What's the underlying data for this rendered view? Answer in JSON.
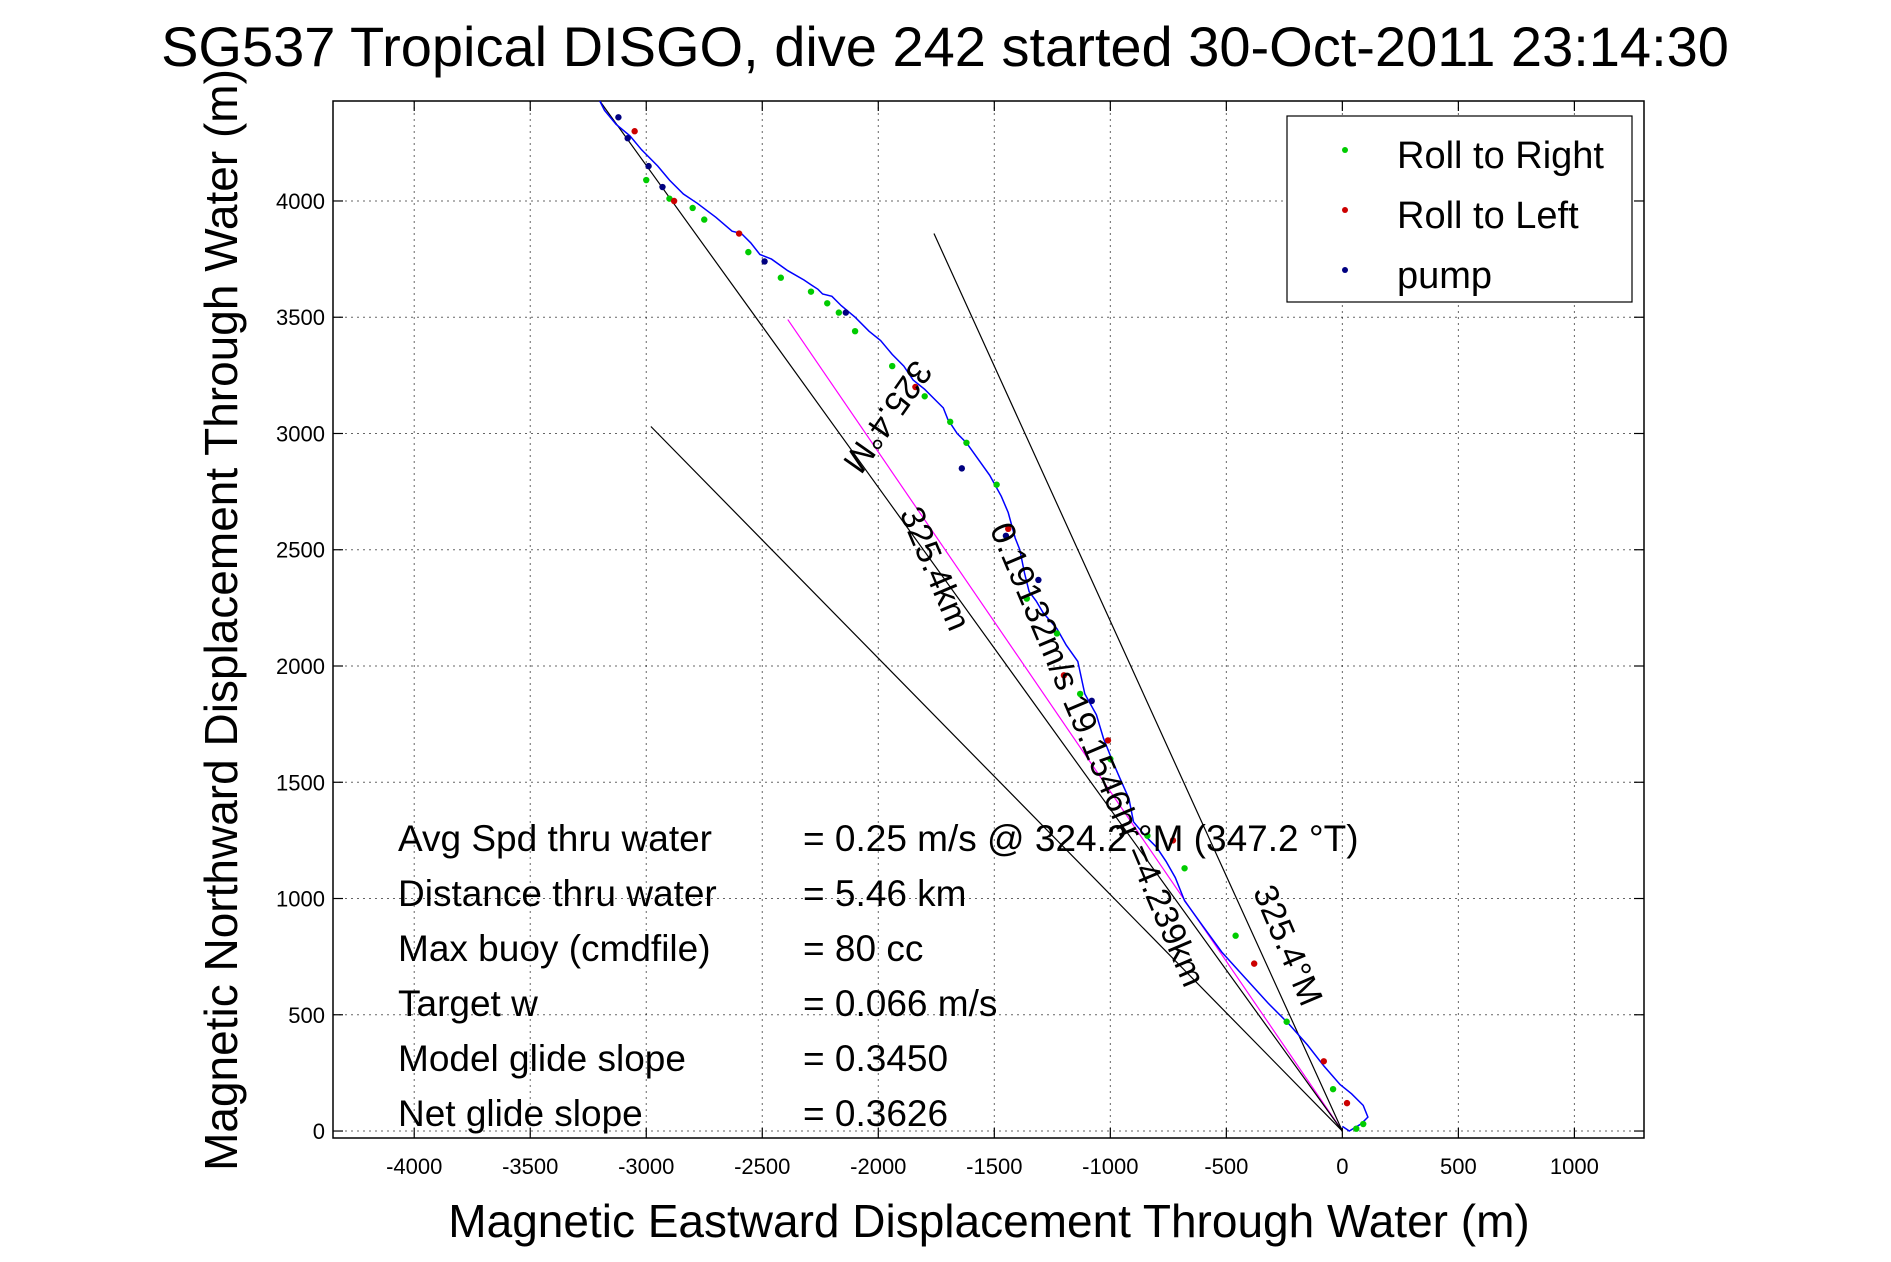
{
  "title": "SG537 Tropical DISGO, dive 242 started 30-Oct-2011 23:14:30",
  "chart_data": {
    "type": "line",
    "title": "SG537 Tropical DISGO, dive 242 started 30-Oct-2011 23:14:30",
    "xlabel": "Magnetic Eastward Displacement Through Water (m)",
    "ylabel": "Magnetic Northward Displacement Through Water (m)",
    "xlim": [
      -4350,
      1300
    ],
    "ylim": [
      -30,
      4430
    ],
    "xticks": [
      -4000,
      -3500,
      -3000,
      -2500,
      -2000,
      -1500,
      -1000,
      -500,
      0,
      500,
      1000
    ],
    "yticks": [
      0,
      500,
      1000,
      1500,
      2000,
      2500,
      3000,
      3500,
      4000
    ],
    "xticklabels": [
      "-4000",
      "-3500",
      "-3000",
      "-2500",
      "-2000",
      "-1500",
      "-1000",
      "-500",
      "0",
      "500",
      "1000"
    ],
    "yticklabels": [
      "0",
      "500",
      "1000",
      "1500",
      "2000",
      "2500",
      "3000",
      "3500",
      "4000"
    ],
    "grid": true,
    "legend": {
      "position": "top-right",
      "entries": [
        {
          "label": "Roll to Right",
          "color": "#00cc00"
        },
        {
          "label": "Roll to Left",
          "color": "#cc0000"
        },
        {
          "label": "pump",
          "color": "#000080"
        }
      ]
    },
    "track": {
      "color": "#0000ff",
      "x": [
        0,
        30,
        80,
        110,
        90,
        40,
        -10,
        -80,
        -150,
        -230,
        -320,
        -420,
        -520,
        -600,
        -680,
        -720,
        -760,
        -800,
        -850,
        -900,
        -920,
        -960,
        -990,
        -1030,
        -1060,
        -1110,
        -1140,
        -1190,
        -1230,
        -1290,
        -1320,
        -1350,
        -1370,
        -1390,
        -1410,
        -1440,
        -1470,
        -1520,
        -1570,
        -1620,
        -1660,
        -1700,
        -1720,
        -1760,
        -1800,
        -1850,
        -1890,
        -1940,
        -1990,
        -2040,
        -2100,
        -2160,
        -2200,
        -2240,
        -2260,
        -2290,
        -2320,
        -2390,
        -2460,
        -2510,
        -2550,
        -2590,
        -2630,
        -2700,
        -2780,
        -2840,
        -2900,
        -2950,
        -3020,
        -3070,
        -3130,
        -3180,
        -3200
      ],
      "y": [
        20,
        0,
        30,
        60,
        110,
        160,
        200,
        280,
        370,
        460,
        550,
        660,
        770,
        880,
        990,
        1090,
        1160,
        1220,
        1270,
        1330,
        1430,
        1520,
        1590,
        1690,
        1790,
        1880,
        2020,
        2090,
        2160,
        2230,
        2280,
        2320,
        2400,
        2500,
        2550,
        2660,
        2730,
        2820,
        2890,
        2960,
        3000,
        3060,
        3110,
        3150,
        3190,
        3230,
        3290,
        3340,
        3400,
        3440,
        3500,
        3550,
        3590,
        3600,
        3620,
        3640,
        3660,
        3700,
        3750,
        3770,
        3820,
        3860,
        3870,
        3930,
        3990,
        4030,
        4090,
        4150,
        4220,
        4280,
        4330,
        4390,
        4430
      ]
    },
    "markers": {
      "roll_right": {
        "x": [
          90,
          60,
          -40,
          -240,
          -460,
          -680,
          -840,
          -1000,
          -1130,
          -1230,
          -1360,
          -1490,
          -1620,
          -1690,
          -1800,
          -1940,
          -2100,
          -2170,
          -2220,
          -2290,
          -2420,
          -2560,
          -2750,
          -2800,
          -2900,
          -3000
        ],
        "y": [
          30,
          10,
          180,
          470,
          840,
          1130,
          1270,
          1600,
          1880,
          2140,
          2290,
          2780,
          2960,
          3050,
          3160,
          3290,
          3440,
          3520,
          3560,
          3610,
          3670,
          3780,
          3920,
          3970,
          4010,
          4090
        ]
      },
      "roll_left": {
        "x": [
          20,
          -80,
          -380,
          -730,
          -1010,
          -1200,
          -1440,
          -1840,
          -2600,
          -2880,
          -3050
        ],
        "y": [
          120,
          300,
          720,
          1250,
          1680,
          1960,
          2590,
          3200,
          3860,
          4000,
          4300
        ]
      },
      "pump": {
        "x": [
          -3120,
          -3080,
          -2990,
          -2930,
          -2490,
          -2140,
          -1640,
          -1450,
          -1310,
          -1080
        ],
        "y": [
          4360,
          4270,
          4150,
          4060,
          3740,
          3520,
          2850,
          2560,
          2370,
          1850
        ]
      }
    },
    "reference_lines": [
      {
        "name": "magenta heading line",
        "color": "#ff00ff",
        "x": [
          0,
          -2390
        ],
        "y": [
          0,
          3490
        ]
      },
      {
        "name": "upper bound",
        "color": "#000000",
        "x": [
          0,
          -1760
        ],
        "y": [
          0,
          3860
        ]
      },
      {
        "name": "lower bound",
        "color": "#000000",
        "x": [
          0,
          -2980
        ],
        "y": [
          0,
          3030
        ]
      },
      {
        "name": "direct track",
        "color": "#000000",
        "x": [
          0,
          -3200
        ],
        "y": [
          0,
          4430
        ]
      }
    ],
    "annotations": [
      {
        "text": "325.4°M",
        "x": -2000,
        "y": 3100,
        "rotation": 125
      },
      {
        "text": "325.4km",
        "x": -1800,
        "y": 2400,
        "rotation": 67
      },
      {
        "text": "0.19132m/s 19.1546hr =4.239km",
        "x": -1100,
        "y": 1600,
        "rotation": 67
      },
      {
        "text": "325.4°M",
        "x": -280,
        "y": 780,
        "rotation": 67
      }
    ],
    "stats": [
      {
        "label": "Avg Spd thru water",
        "value": "=  0.25 m/s @  324.2  °M (347.2 °T)"
      },
      {
        "label": "Distance thru water",
        "value": "=  5.46 km"
      },
      {
        "label": "Max buoy (cmdfile)",
        "value": "= 80 cc"
      },
      {
        "label": "Target w",
        "value": "= 0.066 m/s"
      },
      {
        "label": "Model glide slope",
        "value": "= 0.3450"
      },
      {
        "label": "Net glide slope",
        "value": "= 0.3626"
      }
    ]
  }
}
